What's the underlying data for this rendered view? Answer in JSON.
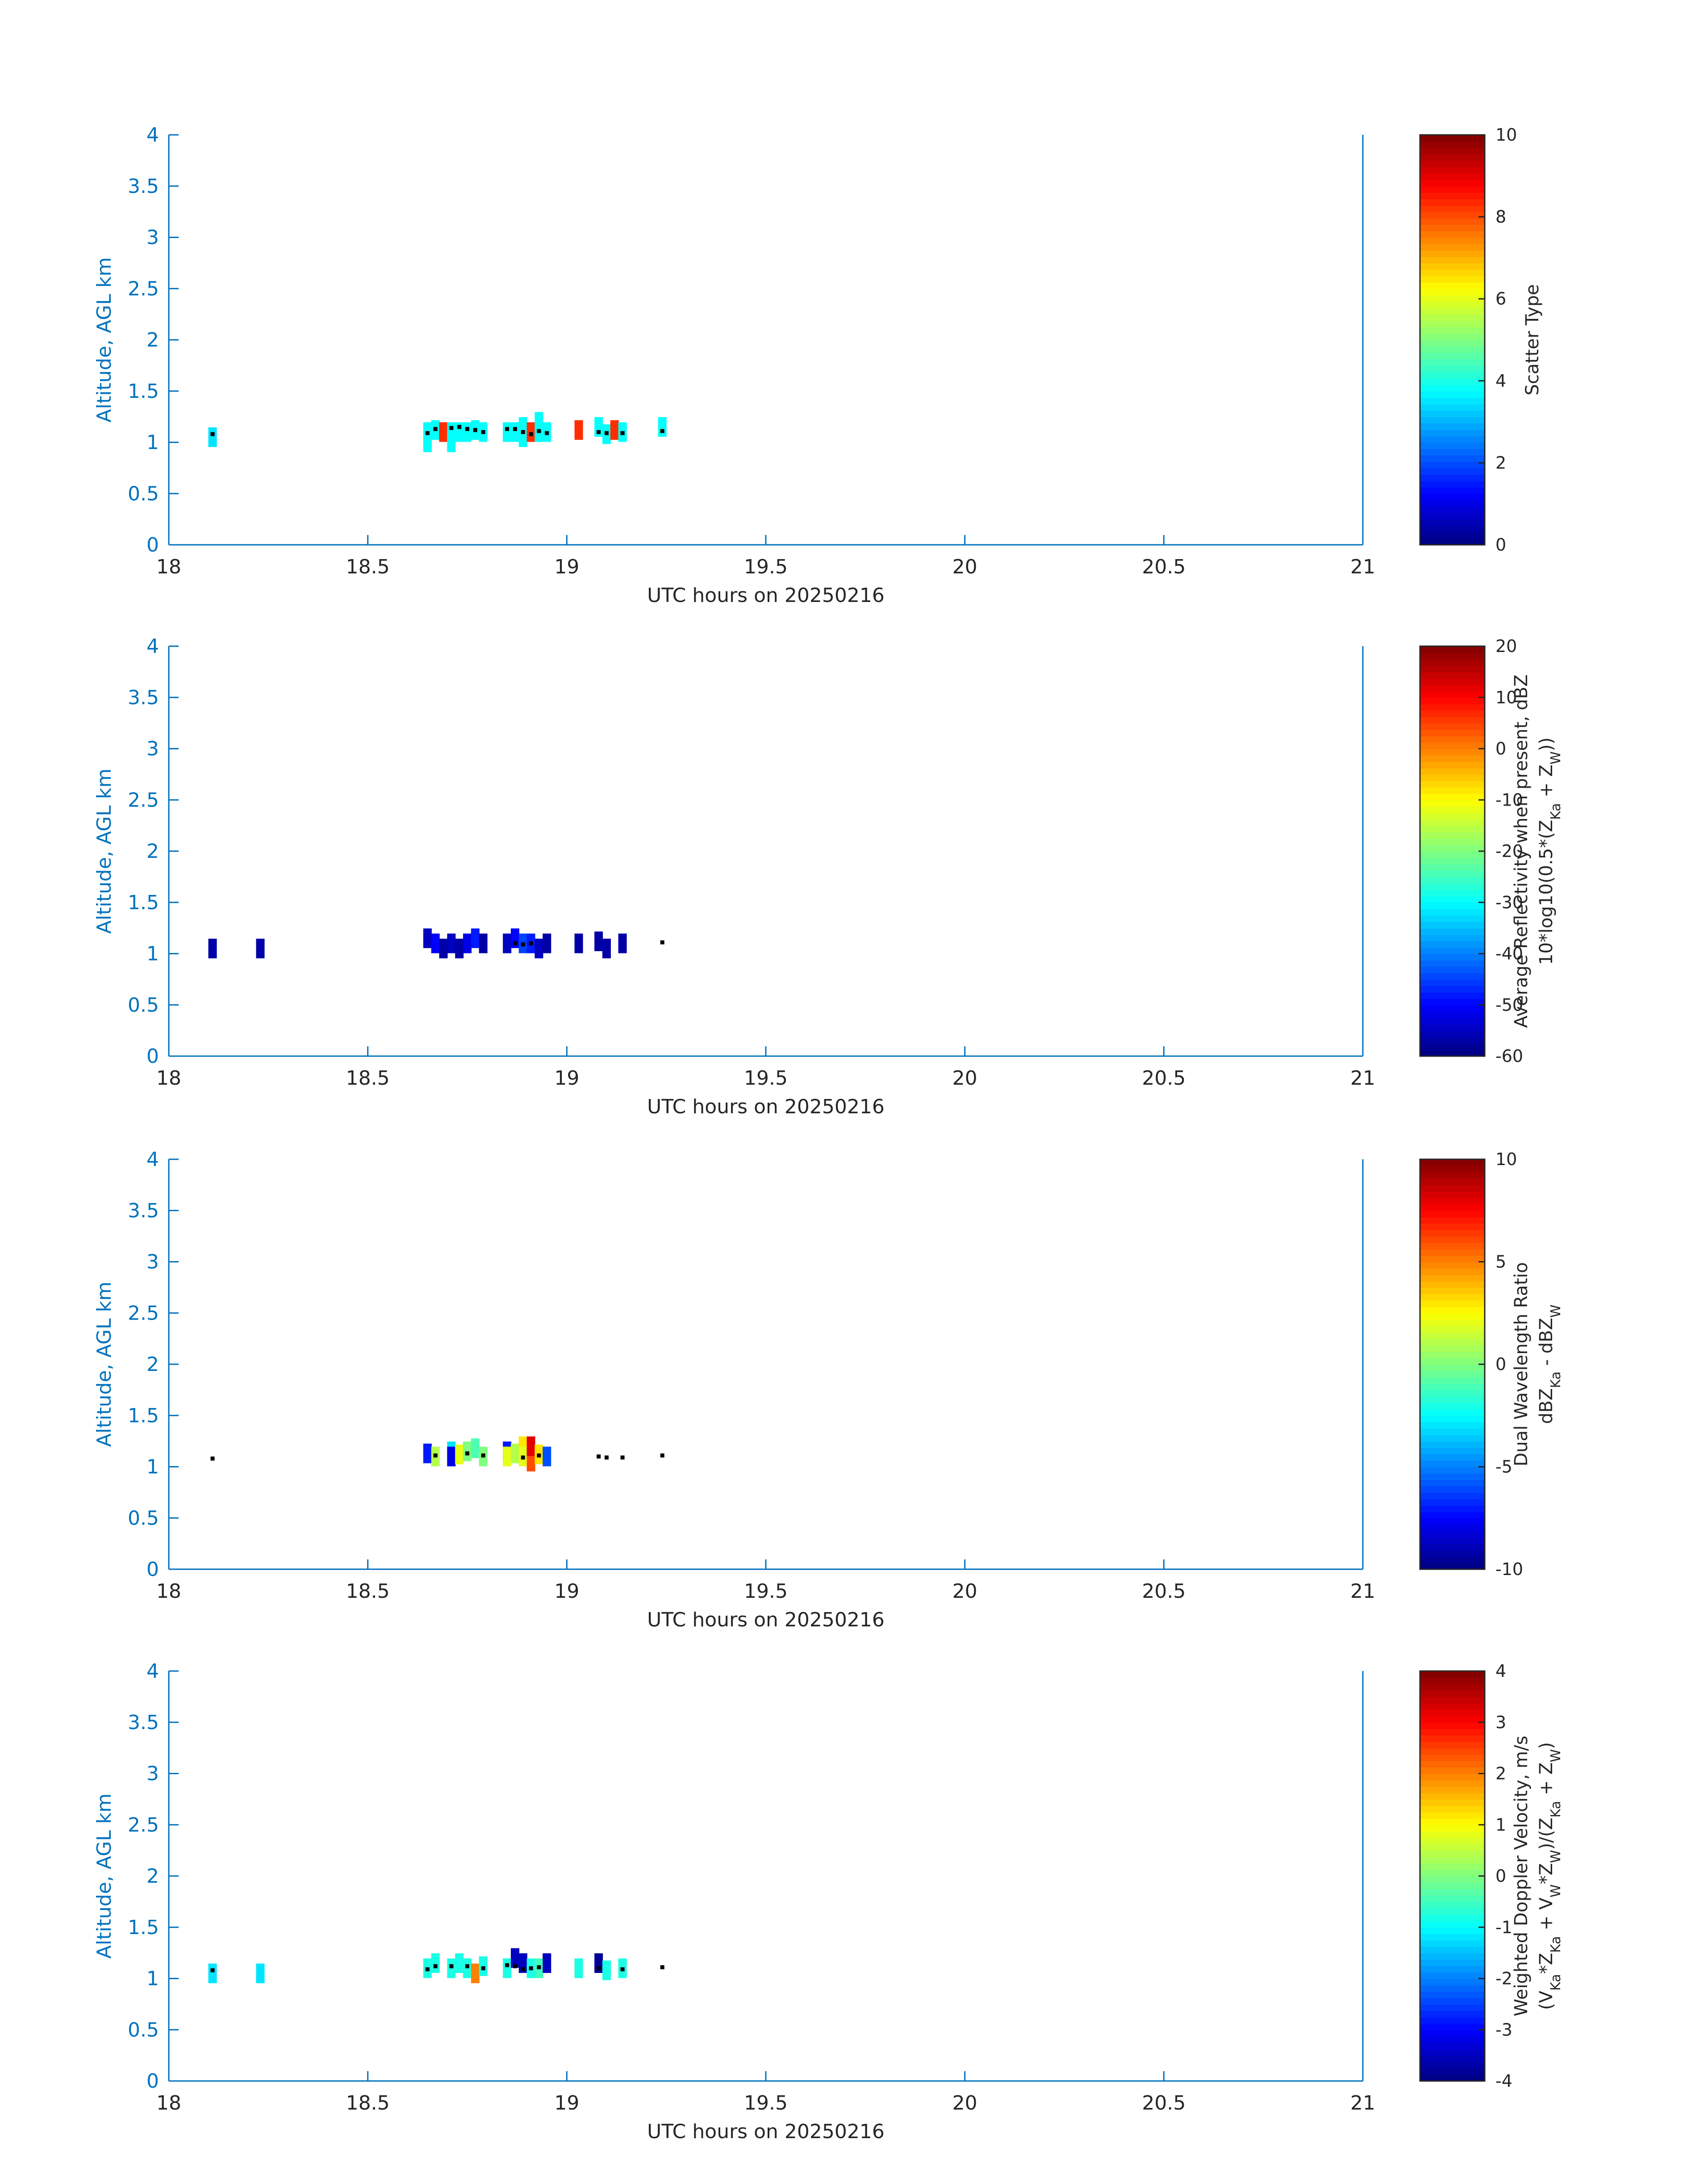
{
  "colors": {
    "axis_ylabel": "#0072BD",
    "axis_frame": "#0072BD",
    "text": "#262626",
    "colormap": "jet"
  },
  "xlabel": "UTC hours on 20250216",
  "ylabel": "Altitude, AGL km",
  "x_ticks": [
    "18",
    "18.5",
    "19",
    "19.5",
    "20",
    "20.5",
    "21"
  ],
  "y_ticks": [
    "0",
    "0.5",
    "1",
    "1.5",
    "2",
    "2.5",
    "3",
    "3.5",
    "4"
  ],
  "chart_data": [
    {
      "type": "heatmap",
      "xlim": [
        18,
        21
      ],
      "ylim": [
        0,
        4
      ],
      "colorbar": {
        "label_lines": [
          "Scatter Type"
        ],
        "clim": [
          0,
          10
        ],
        "ticks": [
          "0",
          "2",
          "4",
          "6",
          "8",
          "10"
        ]
      },
      "cells": [
        {
          "x": 18.11,
          "y": 1.05,
          "v": 3.5
        },
        {
          "x": 18.65,
          "y": 1.0,
          "v": 3.8
        },
        {
          "x": 18.65,
          "y": 1.1,
          "v": 3.8
        },
        {
          "x": 18.67,
          "y": 1.12,
          "v": 3.8
        },
        {
          "x": 18.69,
          "y": 1.1,
          "v": 8.3
        },
        {
          "x": 18.71,
          "y": 1.0,
          "v": 3.8
        },
        {
          "x": 18.71,
          "y": 1.1,
          "v": 3.8
        },
        {
          "x": 18.73,
          "y": 1.1,
          "v": 3.8
        },
        {
          "x": 18.75,
          "y": 1.1,
          "v": 3.8
        },
        {
          "x": 18.77,
          "y": 1.12,
          "v": 3.8
        },
        {
          "x": 18.79,
          "y": 1.1,
          "v": 3.8
        },
        {
          "x": 18.85,
          "y": 1.1,
          "v": 3.8
        },
        {
          "x": 18.87,
          "y": 1.1,
          "v": 3.8
        },
        {
          "x": 18.89,
          "y": 1.05,
          "v": 3.8
        },
        {
          "x": 18.89,
          "y": 1.15,
          "v": 3.8
        },
        {
          "x": 18.91,
          "y": 1.1,
          "v": 8.3
        },
        {
          "x": 18.93,
          "y": 1.1,
          "v": 3.8
        },
        {
          "x": 18.93,
          "y": 1.2,
          "v": 3.8
        },
        {
          "x": 18.95,
          "y": 1.1,
          "v": 3.8
        },
        {
          "x": 19.03,
          "y": 1.12,
          "v": 8.3
        },
        {
          "x": 19.08,
          "y": 1.15,
          "v": 3.8
        },
        {
          "x": 19.1,
          "y": 1.08,
          "v": 3.8
        },
        {
          "x": 19.12,
          "y": 1.12,
          "v": 8.3
        },
        {
          "x": 19.14,
          "y": 1.1,
          "v": 3.8
        },
        {
          "x": 19.24,
          "y": 1.15,
          "v": 3.8
        }
      ],
      "points": [
        {
          "x": 18.11,
          "y": 1.08
        },
        {
          "x": 18.65,
          "y": 1.09
        },
        {
          "x": 18.67,
          "y": 1.13
        },
        {
          "x": 18.71,
          "y": 1.14
        },
        {
          "x": 18.73,
          "y": 1.15
        },
        {
          "x": 18.75,
          "y": 1.13
        },
        {
          "x": 18.77,
          "y": 1.12
        },
        {
          "x": 18.79,
          "y": 1.1
        },
        {
          "x": 18.85,
          "y": 1.13
        },
        {
          "x": 18.87,
          "y": 1.13
        },
        {
          "x": 18.89,
          "y": 1.1
        },
        {
          "x": 18.91,
          "y": 1.08
        },
        {
          "x": 18.93,
          "y": 1.11
        },
        {
          "x": 18.95,
          "y": 1.09
        },
        {
          "x": 19.08,
          "y": 1.1
        },
        {
          "x": 19.1,
          "y": 1.09
        },
        {
          "x": 19.14,
          "y": 1.09
        },
        {
          "x": 19.24,
          "y": 1.11
        }
      ]
    },
    {
      "type": "heatmap",
      "xlim": [
        18,
        21
      ],
      "ylim": [
        0,
        4
      ],
      "colorbar": {
        "label_lines": [
          "Average Reflectivity when present, dBZ",
          "10*log10(0.5*(Z_Ka + Z_W))"
        ],
        "clim": [
          -60,
          20
        ],
        "ticks": [
          "-60",
          "-50",
          "-40",
          "-30",
          "-20",
          "-10",
          "0",
          "10",
          "20"
        ]
      },
      "cells": [
        {
          "x": 18.11,
          "y": 1.05,
          "v": -57
        },
        {
          "x": 18.23,
          "y": 1.05,
          "v": -57
        },
        {
          "x": 18.65,
          "y": 1.15,
          "v": -55
        },
        {
          "x": 18.67,
          "y": 1.1,
          "v": -50
        },
        {
          "x": 18.69,
          "y": 1.05,
          "v": -57
        },
        {
          "x": 18.71,
          "y": 1.1,
          "v": -55
        },
        {
          "x": 18.73,
          "y": 1.05,
          "v": -57
        },
        {
          "x": 18.75,
          "y": 1.1,
          "v": -52
        },
        {
          "x": 18.77,
          "y": 1.15,
          "v": -48
        },
        {
          "x": 18.79,
          "y": 1.1,
          "v": -57
        },
        {
          "x": 18.85,
          "y": 1.1,
          "v": -55
        },
        {
          "x": 18.87,
          "y": 1.15,
          "v": -50
        },
        {
          "x": 18.89,
          "y": 1.1,
          "v": -45
        },
        {
          "x": 18.91,
          "y": 1.1,
          "v": -48
        },
        {
          "x": 18.93,
          "y": 1.05,
          "v": -55
        },
        {
          "x": 18.95,
          "y": 1.1,
          "v": -57
        },
        {
          "x": 19.03,
          "y": 1.1,
          "v": -57
        },
        {
          "x": 19.08,
          "y": 1.12,
          "v": -57
        },
        {
          "x": 19.1,
          "y": 1.05,
          "v": -57
        },
        {
          "x": 19.14,
          "y": 1.1,
          "v": -57
        }
      ],
      "points": [
        {
          "x": 18.87,
          "y": 1.1
        },
        {
          "x": 18.89,
          "y": 1.09
        },
        {
          "x": 18.91,
          "y": 1.1
        },
        {
          "x": 19.24,
          "y": 1.11
        }
      ]
    },
    {
      "type": "heatmap",
      "xlim": [
        18,
        21
      ],
      "ylim": [
        0,
        4
      ],
      "colorbar": {
        "label_lines": [
          "Dual Wavelength Ratio",
          "dBZ_Ka - dBZ_W"
        ],
        "clim": [
          -10,
          10
        ],
        "ticks": [
          "-10",
          "-5",
          "0",
          "5",
          "10"
        ]
      },
      "cells": [
        {
          "x": 18.65,
          "y": 1.13,
          "v": -7
        },
        {
          "x": 18.67,
          "y": 1.1,
          "v": 1
        },
        {
          "x": 18.71,
          "y": 1.15,
          "v": -3
        },
        {
          "x": 18.71,
          "y": 1.1,
          "v": -8
        },
        {
          "x": 18.73,
          "y": 1.12,
          "v": 2
        },
        {
          "x": 18.75,
          "y": 1.15,
          "v": 0
        },
        {
          "x": 18.77,
          "y": 1.18,
          "v": -1
        },
        {
          "x": 18.79,
          "y": 1.1,
          "v": 0
        },
        {
          "x": 18.85,
          "y": 1.15,
          "v": -7
        },
        {
          "x": 18.85,
          "y": 1.1,
          "v": 2
        },
        {
          "x": 18.87,
          "y": 1.13,
          "v": 1
        },
        {
          "x": 18.89,
          "y": 1.2,
          "v": 3
        },
        {
          "x": 18.89,
          "y": 1.1,
          "v": 2
        },
        {
          "x": 18.91,
          "y": 1.05,
          "v": 6
        },
        {
          "x": 18.91,
          "y": 1.2,
          "v": 8
        },
        {
          "x": 18.93,
          "y": 1.12,
          "v": 3
        },
        {
          "x": 18.95,
          "y": 1.1,
          "v": -6
        }
      ],
      "points": [
        {
          "x": 18.11,
          "y": 1.08
        },
        {
          "x": 18.67,
          "y": 1.11
        },
        {
          "x": 18.75,
          "y": 1.13
        },
        {
          "x": 18.79,
          "y": 1.11
        },
        {
          "x": 18.89,
          "y": 1.09
        },
        {
          "x": 18.93,
          "y": 1.11
        },
        {
          "x": 19.08,
          "y": 1.1
        },
        {
          "x": 19.1,
          "y": 1.09
        },
        {
          "x": 19.14,
          "y": 1.09
        },
        {
          "x": 19.24,
          "y": 1.11
        }
      ]
    },
    {
      "type": "heatmap",
      "xlim": [
        18,
        21
      ],
      "ylim": [
        0,
        4
      ],
      "colorbar": {
        "label_lines": [
          "Weighted Doppler Velocity, m/s",
          "(V_Ka*Z_Ka + V_W*Z_W)/(Z_Ka + Z_W)"
        ],
        "clim": [
          -4,
          4
        ],
        "ticks": [
          "-4",
          "-3",
          "-2",
          "-1",
          "0",
          "1",
          "2",
          "3",
          "4"
        ]
      },
      "cells": [
        {
          "x": 18.11,
          "y": 1.05,
          "v": -1.2
        },
        {
          "x": 18.23,
          "y": 1.05,
          "v": -1.2
        },
        {
          "x": 18.65,
          "y": 1.1,
          "v": -0.8
        },
        {
          "x": 18.67,
          "y": 1.15,
          "v": -0.8
        },
        {
          "x": 18.71,
          "y": 1.1,
          "v": -0.8
        },
        {
          "x": 18.73,
          "y": 1.15,
          "v": -0.8
        },
        {
          "x": 18.75,
          "y": 1.1,
          "v": -0.8
        },
        {
          "x": 18.77,
          "y": 1.05,
          "v": 2.0
        },
        {
          "x": 18.79,
          "y": 1.12,
          "v": -0.8
        },
        {
          "x": 18.85,
          "y": 1.1,
          "v": -0.8
        },
        {
          "x": 18.87,
          "y": 1.2,
          "v": -3.5
        },
        {
          "x": 18.89,
          "y": 1.15,
          "v": -3.5
        },
        {
          "x": 18.91,
          "y": 1.1,
          "v": -0.8
        },
        {
          "x": 18.93,
          "y": 1.1,
          "v": -0.5
        },
        {
          "x": 18.95,
          "y": 1.15,
          "v": -3.5
        },
        {
          "x": 19.03,
          "y": 1.1,
          "v": -0.8
        },
        {
          "x": 19.08,
          "y": 1.15,
          "v": -3.8
        },
        {
          "x": 19.1,
          "y": 1.08,
          "v": -0.8
        },
        {
          "x": 19.14,
          "y": 1.1,
          "v": -0.8
        }
      ],
      "points": [
        {
          "x": 18.11,
          "y": 1.08
        },
        {
          "x": 18.65,
          "y": 1.09
        },
        {
          "x": 18.67,
          "y": 1.12
        },
        {
          "x": 18.71,
          "y": 1.12
        },
        {
          "x": 18.75,
          "y": 1.12
        },
        {
          "x": 18.79,
          "y": 1.1
        },
        {
          "x": 18.85,
          "y": 1.13
        },
        {
          "x": 18.87,
          "y": 1.12
        },
        {
          "x": 18.89,
          "y": 1.09
        },
        {
          "x": 18.91,
          "y": 1.1
        },
        {
          "x": 18.93,
          "y": 1.11
        },
        {
          "x": 19.08,
          "y": 1.1
        },
        {
          "x": 19.14,
          "y": 1.09
        },
        {
          "x": 19.24,
          "y": 1.11
        }
      ]
    }
  ]
}
